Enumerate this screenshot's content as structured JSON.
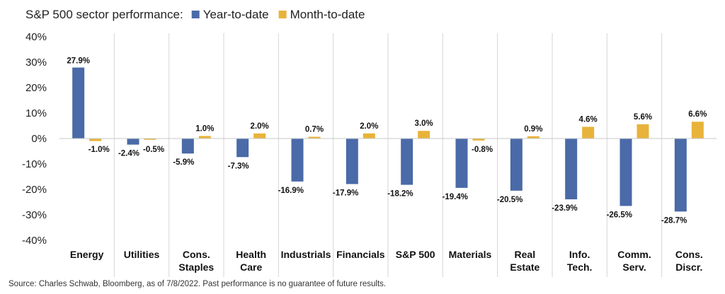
{
  "chart_data": {
    "type": "bar",
    "title": "S&P 500 sector performance:",
    "categories": [
      [
        "Energy"
      ],
      [
        "Utilities"
      ],
      [
        "Cons.",
        "Staples"
      ],
      [
        "Health",
        "Care"
      ],
      [
        "Industrials"
      ],
      [
        "Financials"
      ],
      [
        "S&P 500"
      ],
      [
        "Materials"
      ],
      [
        "Real",
        "Estate"
      ],
      [
        "Info.",
        "Tech."
      ],
      [
        "Comm.",
        "Serv."
      ],
      [
        "Cons.",
        "Discr."
      ]
    ],
    "series": [
      {
        "name": "Year-to-date",
        "color": "#4a6aa8",
        "values": [
          27.9,
          -2.4,
          -5.9,
          -7.3,
          -16.9,
          -17.9,
          -18.2,
          -19.4,
          -20.5,
          -23.9,
          -26.5,
          -28.7
        ],
        "labels": [
          "27.9%",
          "-2.4%",
          "-5.9%",
          "-7.3%",
          "-16.9%",
          "-17.9%",
          "-18.2%",
          "-19.4%",
          "-20.5%",
          "-23.9%",
          "-26.5%",
          "-28.7%"
        ]
      },
      {
        "name": "Month-to-date",
        "color": "#e8b33a",
        "values": [
          -1.0,
          -0.5,
          1.0,
          2.0,
          0.7,
          2.0,
          3.0,
          -0.8,
          0.9,
          4.6,
          5.6,
          6.6
        ],
        "labels": [
          "-1.0%",
          "-0.5%",
          "1.0%",
          "2.0%",
          "0.7%",
          "2.0%",
          "3.0%",
          "-0.8%",
          "0.9%",
          "4.6%",
          "5.6%",
          "6.6%"
        ]
      }
    ],
    "yticks": [
      40,
      30,
      20,
      10,
      0,
      -10,
      -20,
      -30,
      -40
    ],
    "ytick_labels": [
      "40%",
      "30%",
      "20%",
      "10%",
      "0%",
      "-10%",
      "-20%",
      "-30%",
      "-40%"
    ],
    "ylim": [
      -40,
      40
    ],
    "xlabel": "",
    "ylabel": "",
    "legend_position": "top",
    "grid": false,
    "category_separators": true
  },
  "footer": {
    "source": "Source: Charles Schwab, Bloomberg, as of 7/8/2022. Past performance is no guarantee of future results."
  }
}
